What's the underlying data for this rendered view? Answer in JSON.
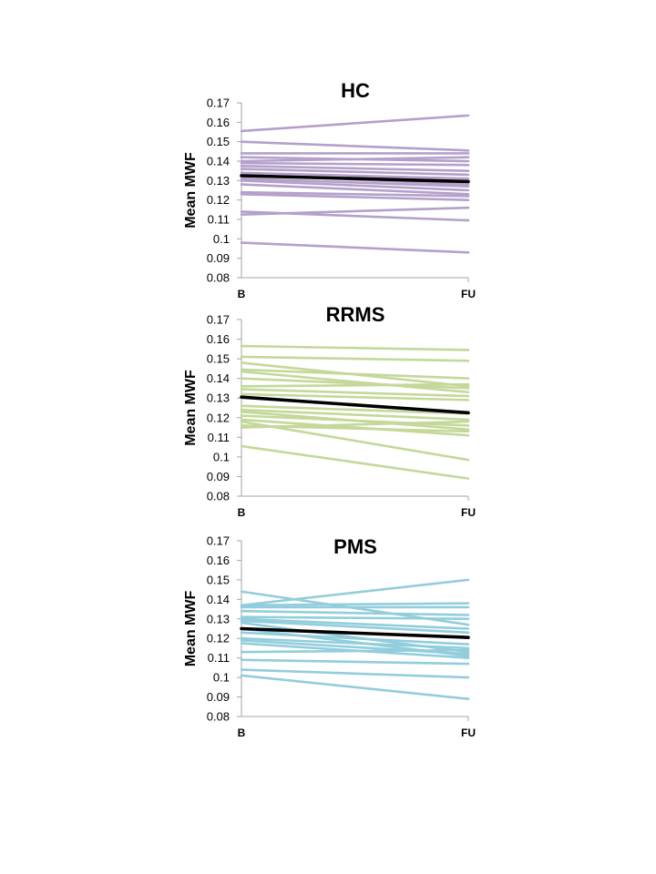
{
  "chart_data": [
    {
      "type": "line",
      "title": "HC",
      "ylabel": "Mean MWF",
      "xlabel": "",
      "categories": [
        "B",
        "FU"
      ],
      "ylim": [
        0.08,
        0.17
      ],
      "yticks": [
        "0.17",
        "0.16",
        "0.15",
        "0.14",
        "0.13",
        "0.12",
        "0.11",
        "0.1",
        "0.09",
        "0.08"
      ],
      "series_color": "#b4a0ca",
      "mean_color": "#000000",
      "series": [
        {
          "name": "s1",
          "values": [
            0.1555,
            0.1635
          ]
        },
        {
          "name": "s2",
          "values": [
            0.15,
            0.1455
          ]
        },
        {
          "name": "s3",
          "values": [
            0.144,
            0.144
          ]
        },
        {
          "name": "s4",
          "values": [
            0.142,
            0.14
          ]
        },
        {
          "name": "s5",
          "values": [
            0.14,
            0.142
          ]
        },
        {
          "name": "s6",
          "values": [
            0.139,
            0.138
          ]
        },
        {
          "name": "s7",
          "values": [
            0.1375,
            0.135
          ]
        },
        {
          "name": "s8",
          "values": [
            0.136,
            0.133
          ]
        },
        {
          "name": "s9",
          "values": [
            0.134,
            0.131
          ]
        },
        {
          "name": "s10",
          "values": [
            0.133,
            0.128
          ]
        },
        {
          "name": "s11",
          "values": [
            0.131,
            0.127
          ]
        },
        {
          "name": "s12",
          "values": [
            0.13,
            0.125
          ]
        },
        {
          "name": "s13",
          "values": [
            0.128,
            0.123
          ]
        },
        {
          "name": "s14",
          "values": [
            0.124,
            0.122
          ]
        },
        {
          "name": "s15",
          "values": [
            0.123,
            0.12
          ]
        },
        {
          "name": "s16",
          "values": [
            0.114,
            0.1095
          ]
        },
        {
          "name": "s17",
          "values": [
            0.1125,
            0.116
          ]
        },
        {
          "name": "s18",
          "values": [
            0.098,
            0.093
          ]
        }
      ],
      "mean": {
        "name": "mean",
        "values": [
          0.1325,
          0.1295
        ]
      }
    },
    {
      "type": "line",
      "title": "RRMS",
      "ylabel": "Mean MWF",
      "xlabel": "",
      "categories": [
        "B",
        "FU"
      ],
      "ylim": [
        0.08,
        0.17
      ],
      "yticks": [
        "0.17",
        "0.16",
        "0.15",
        "0.14",
        "0.13",
        "0.12",
        "0.11",
        "0.1",
        "0.09",
        "0.08"
      ],
      "series_color": "#c4d89a",
      "mean_color": "#000000",
      "series": [
        {
          "name": "s1",
          "values": [
            0.1565,
            0.1545
          ]
        },
        {
          "name": "s2",
          "values": [
            0.151,
            0.149
          ]
        },
        {
          "name": "s3",
          "values": [
            0.148,
            0.136
          ]
        },
        {
          "name": "s4",
          "values": [
            0.1445,
            0.14
          ]
        },
        {
          "name": "s5",
          "values": [
            0.1435,
            0.133
          ]
        },
        {
          "name": "s6",
          "values": [
            0.14,
            0.135
          ]
        },
        {
          "name": "s7",
          "values": [
            0.136,
            0.137
          ]
        },
        {
          "name": "s8",
          "values": [
            0.1345,
            0.131
          ]
        },
        {
          "name": "s9",
          "values": [
            0.132,
            0.129
          ]
        },
        {
          "name": "s10",
          "values": [
            0.126,
            0.122
          ]
        },
        {
          "name": "s11",
          "values": [
            0.124,
            0.119
          ]
        },
        {
          "name": "s12",
          "values": [
            0.123,
            0.114
          ]
        },
        {
          "name": "s13",
          "values": [
            0.121,
            0.116
          ]
        },
        {
          "name": "s14",
          "values": [
            0.119,
            0.111
          ]
        },
        {
          "name": "s15",
          "values": [
            0.118,
            0.0985
          ]
        },
        {
          "name": "s16",
          "values": [
            0.116,
            0.113
          ]
        },
        {
          "name": "s17",
          "values": [
            0.115,
            0.118
          ]
        },
        {
          "name": "s18",
          "values": [
            0.1055,
            0.089
          ]
        }
      ],
      "mean": {
        "name": "mean",
        "values": [
          0.1305,
          0.1225
        ]
      }
    },
    {
      "type": "line",
      "title": "PMS",
      "ylabel": "Mean MWF",
      "xlabel": "",
      "categories": [
        "B",
        "FU"
      ],
      "ylim": [
        0.08,
        0.17
      ],
      "yticks": [
        "0.17",
        "0.16",
        "0.15",
        "0.14",
        "0.13",
        "0.12",
        "0.11",
        "0.1",
        "0.09",
        "0.08"
      ],
      "series_color": "#92cddc",
      "mean_color": "#000000",
      "series": [
        {
          "name": "s1",
          "values": [
            0.144,
            0.127
          ]
        },
        {
          "name": "s2",
          "values": [
            0.137,
            0.15
          ]
        },
        {
          "name": "s3",
          "values": [
            0.137,
            0.138
          ]
        },
        {
          "name": "s4",
          "values": [
            0.136,
            0.136
          ]
        },
        {
          "name": "s5",
          "values": [
            0.134,
            0.132
          ]
        },
        {
          "name": "s6",
          "values": [
            0.131,
            0.13
          ]
        },
        {
          "name": "s7",
          "values": [
            0.13,
            0.125
          ]
        },
        {
          "name": "s8",
          "values": [
            0.129,
            0.123
          ]
        },
        {
          "name": "s9",
          "values": [
            0.128,
            0.113
          ]
        },
        {
          "name": "s10",
          "values": [
            0.125,
            0.111
          ]
        },
        {
          "name": "s11",
          "values": [
            0.123,
            0.117
          ]
        },
        {
          "name": "s12",
          "values": [
            0.12,
            0.115
          ]
        },
        {
          "name": "s13",
          "values": [
            0.119,
            0.112
          ]
        },
        {
          "name": "s14",
          "values": [
            0.1175,
            0.11
          ]
        },
        {
          "name": "s15",
          "values": [
            0.113,
            0.114
          ]
        },
        {
          "name": "s16",
          "values": [
            0.109,
            0.107
          ]
        },
        {
          "name": "s17",
          "values": [
            0.104,
            0.1
          ]
        },
        {
          "name": "s18",
          "values": [
            0.101,
            0.089
          ]
        }
      ],
      "mean": {
        "name": "mean",
        "values": [
          0.125,
          0.1205
        ]
      }
    }
  ]
}
